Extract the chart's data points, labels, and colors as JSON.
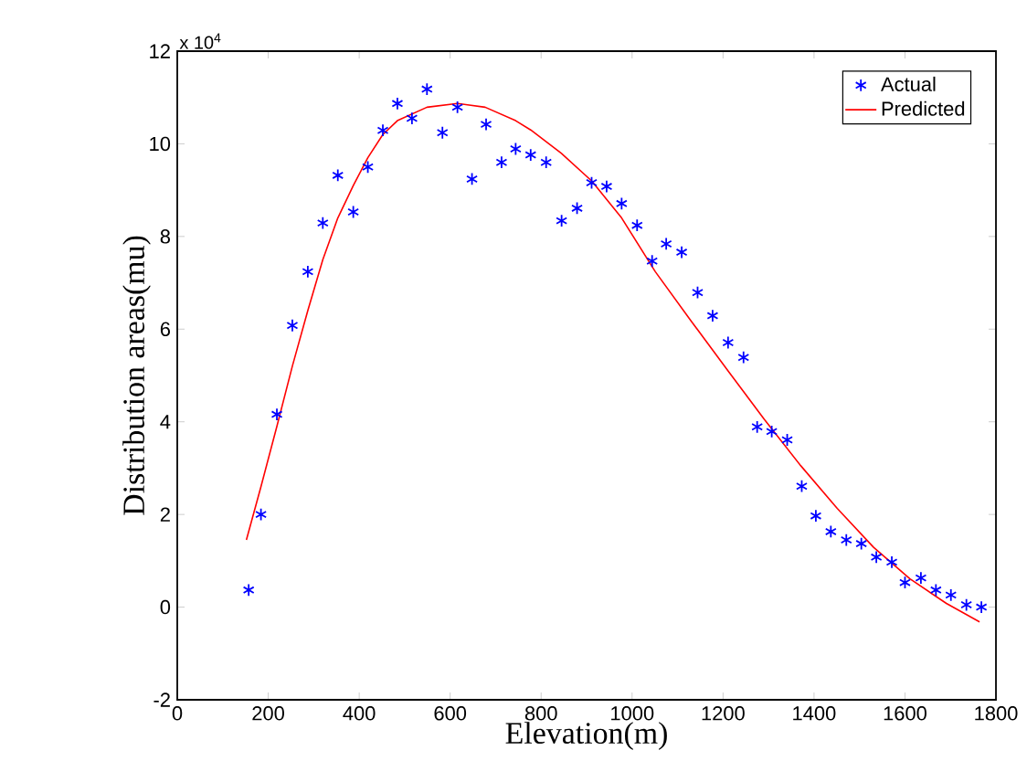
{
  "chart_data": {
    "type": "scatter",
    "xlabel": "Elevation(m)",
    "ylabel": "Distribution areas(mu)",
    "annotations": [
      "x 10$^{4}$"
    ],
    "xlim": [
      0,
      1800
    ],
    "ylim": [
      -2,
      12
    ],
    "xticks": [
      0,
      200,
      400,
      600,
      800,
      1000,
      1200,
      1400,
      1600,
      1800
    ],
    "yticks": [
      -2,
      0,
      2,
      4,
      6,
      8,
      10,
      12
    ],
    "grid": false,
    "legend": "top right",
    "series": [
      {
        "name": "Actual",
        "marker": "cross",
        "color": "#0000ff",
        "x": [
          157,
          184,
          219,
          253,
          287,
          320,
          353,
          387,
          419,
          452,
          484,
          516,
          549,
          583,
          616,
          648,
          679,
          713,
          744,
          777,
          811,
          845,
          879,
          911,
          944,
          977,
          1011,
          1044,
          1075,
          1109,
          1144,
          1177,
          1211,
          1245,
          1275,
          1307,
          1341,
          1373,
          1404,
          1437,
          1471,
          1504,
          1537,
          1571,
          1600,
          1635,
          1668,
          1701,
          1735,
          1768
        ],
        "values": [
          0.37,
          2.0,
          4.16,
          6.08,
          7.24,
          8.29,
          9.32,
          8.53,
          9.5,
          10.29,
          10.87,
          10.55,
          11.18,
          10.24,
          10.79,
          9.24,
          10.42,
          9.6,
          9.89,
          9.76,
          9.6,
          8.34,
          8.61,
          9.16,
          9.08,
          8.71,
          8.24,
          7.47,
          7.84,
          7.66,
          6.79,
          6.29,
          5.71,
          5.39,
          3.89,
          3.79,
          3.61,
          2.61,
          1.97,
          1.63,
          1.45,
          1.37,
          1.08,
          0.97,
          0.53,
          0.63,
          0.37,
          0.26,
          0.05,
          0.0
        ]
      },
      {
        "name": "Predicted",
        "type": "line",
        "marker": "none",
        "line_style": "solid",
        "color": "#ff0000",
        "x": [
          152,
          184,
          219,
          253,
          287,
          320,
          353,
          387,
          419,
          452,
          484,
          549,
          616,
          677,
          744,
          777,
          844,
          911,
          977,
          1051,
          1131,
          1211,
          1291,
          1371,
          1451,
          1531,
          1611,
          1691,
          1764
        ],
        "values": [
          1.45,
          2.6,
          3.9,
          5.2,
          6.4,
          7.5,
          8.4,
          9.1,
          9.7,
          10.2,
          10.5,
          10.79,
          10.87,
          10.79,
          10.5,
          10.3,
          9.8,
          9.2,
          8.4,
          7.24,
          6.16,
          5.1,
          4.05,
          3.05,
          2.13,
          1.29,
          0.61,
          0.08,
          -0.32
        ]
      }
    ]
  }
}
